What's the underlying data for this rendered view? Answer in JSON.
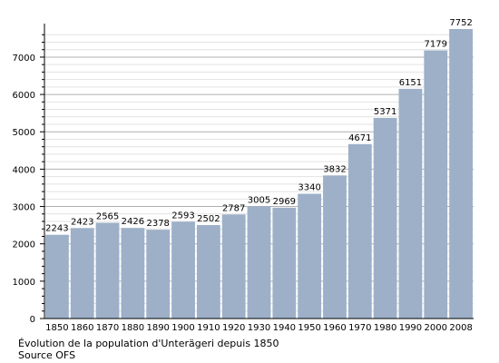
{
  "chart_data": {
    "type": "bar",
    "categories": [
      "1850",
      "1860",
      "1870",
      "1880",
      "1890",
      "1900",
      "1910",
      "1920",
      "1930",
      "1940",
      "1950",
      "1960",
      "1970",
      "1980",
      "1990",
      "2000",
      "2008"
    ],
    "values": [
      2243,
      2423,
      2565,
      2426,
      2378,
      2593,
      2502,
      2787,
      3005,
      2969,
      3340,
      3832,
      4671,
      5371,
      6151,
      7179,
      7752
    ],
    "ylim": [
      0,
      7752
    ],
    "y_ticks": [
      0,
      1000,
      2000,
      3000,
      4000,
      5000,
      6000,
      7000
    ],
    "y_tick_labels": [
      "0",
      "1000",
      "2000",
      "3000",
      "4000",
      "5000",
      "6000",
      "7000"
    ],
    "grid": true,
    "colors": {
      "bar": "#9db0c8",
      "grid_major": "#b0b0b0",
      "grid_minor": "#e2e2e2"
    },
    "data_labels": true
  },
  "caption": {
    "line1": "Évolution de la population d'Unterägeri depuis 1850",
    "line2": "Source OFS"
  }
}
